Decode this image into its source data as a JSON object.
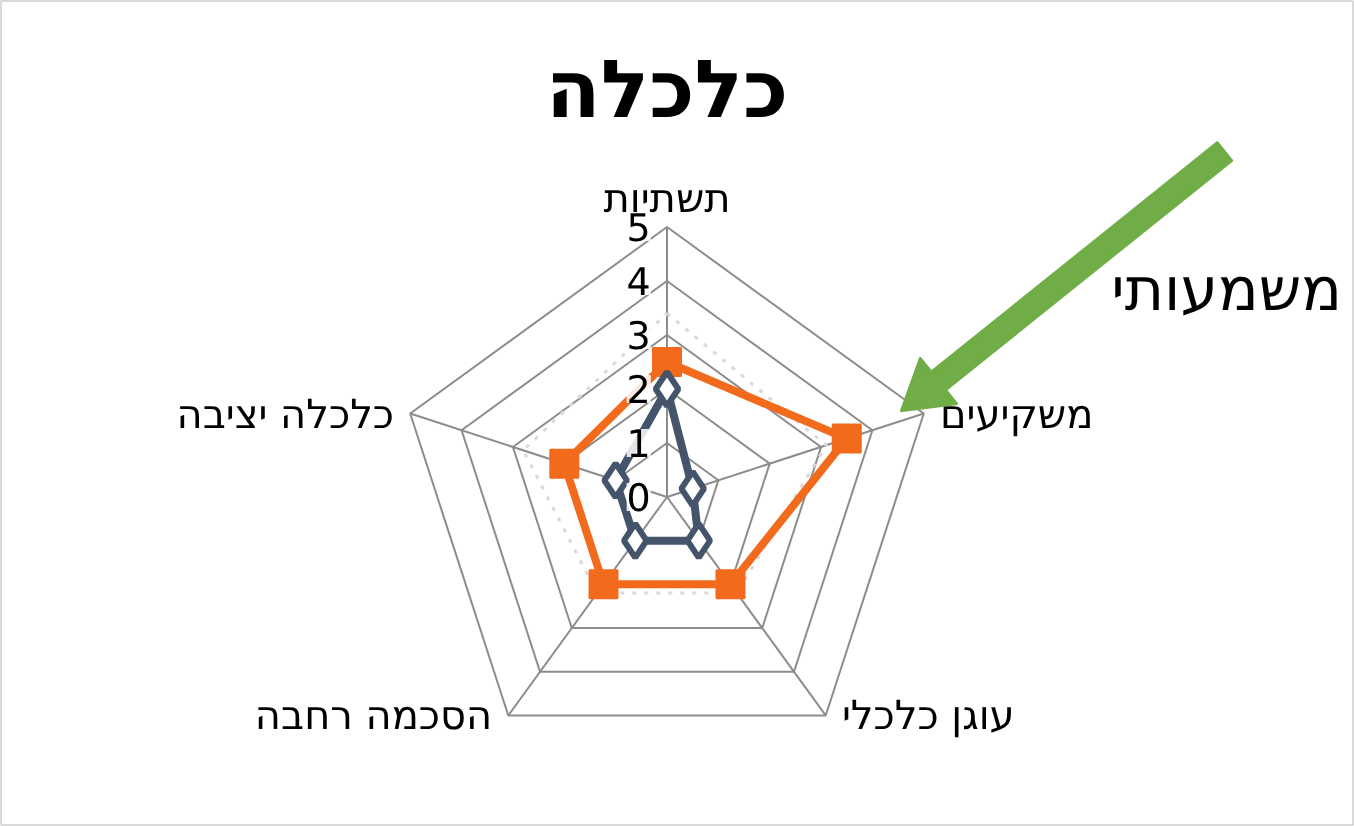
{
  "chart_data": {
    "type": "radar",
    "title": "כלכלה",
    "categories": [
      "תשתיות",
      "משקיעים",
      "עוגן כלכלי",
      "הסכמה רחבה",
      "כלכלה יציבה"
    ],
    "series": [
      {
        "color": "#d9d9d9",
        "values": [
          3.4,
          3.1,
          2.2,
          2.2,
          2.8
        ],
        "marker": "none",
        "line_style": "dotted"
      },
      {
        "color": "#f26b1d",
        "values": [
          2.5,
          3.5,
          2,
          2,
          2
        ],
        "marker": "square",
        "line_style": "solid"
      },
      {
        "color": "#44546a",
        "values": [
          2,
          0.5,
          1,
          1,
          1
        ],
        "marker": "diamond",
        "line_style": "solid"
      }
    ],
    "ylim": [
      0,
      5
    ],
    "yticks": [
      0,
      1,
      2,
      3,
      4,
      5
    ],
    "grid": true,
    "annotations": [
      "משמעותי"
    ]
  }
}
